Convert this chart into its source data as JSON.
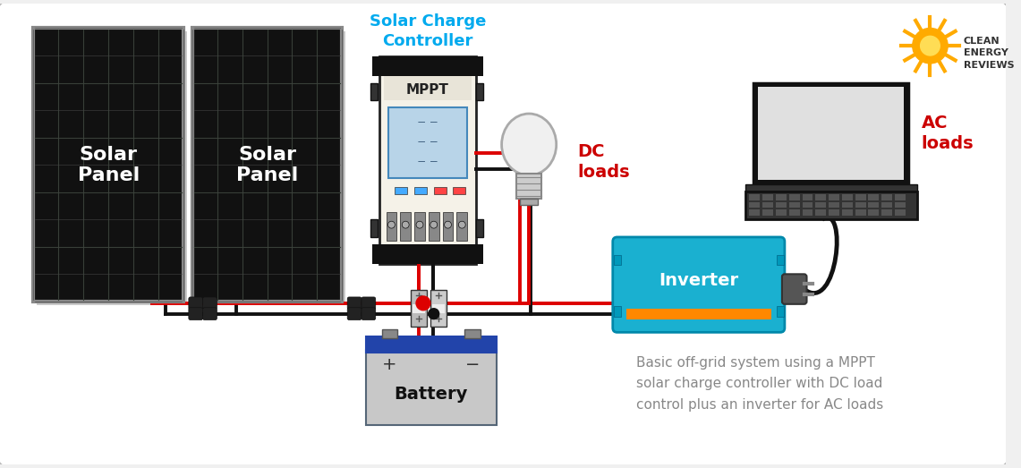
{
  "bg_color": "#f0f0f0",
  "border_color": "#bbbbbb",
  "caption_line1": "Basic off-grid system using a MPPT",
  "caption_line2": "solar charge controller with DC load",
  "caption_line3": "control plus an inverter for AC loads",
  "caption_color": "#888888",
  "panel1_label": "Solar\nPanel",
  "panel2_label": "Solar\nPanel",
  "controller_label": "MPPT",
  "controller_title": "Solar Charge\nController",
  "inverter_label": "Inverter",
  "battery_label": "Battery",
  "dc_loads_label": "DC\nloads",
  "ac_loads_label": "AC\nloads",
  "wire_red": "#dd0000",
  "wire_black": "#111111",
  "panel_bg": "#111111",
  "panel_grid": "#2a2a2a",
  "panel_border": "#444444",
  "panel_text_color": "#ffffff",
  "controller_bg": "#f5f2e8",
  "controller_top": "#222222",
  "controller_border": "#222222",
  "inverter_bg": "#1ab0d0",
  "inverter_border": "#0088aa",
  "inverter_text_color": "#ffffff",
  "inverter_stripe": "#ff8800",
  "battery_top": "#2255aa",
  "battery_body": "#cccccc",
  "battery_text_color": "#111111",
  "label_cyan": "#00aaee",
  "label_red": "#cc0000",
  "fuse_bg": "#999999",
  "mc4_color": "#222222",
  "sun_color": "#ffaa00",
  "sun_ring": "#ff8800",
  "logo_text_color": "#333333"
}
